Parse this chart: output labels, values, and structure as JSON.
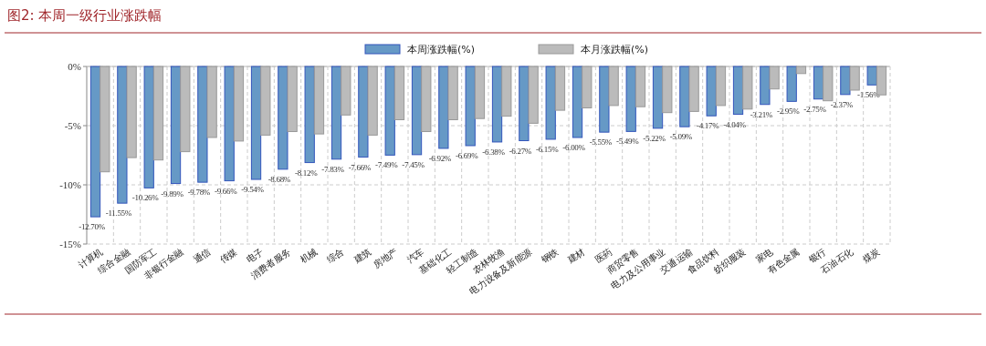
{
  "chart_data": {
    "type": "bar",
    "title": "图2:  本周一级行业涨跌幅",
    "categories": [
      "计算机",
      "综合金融",
      "国防军工",
      "非银行金融",
      "通信",
      "传媒",
      "电子",
      "消费者服务",
      "机械",
      "综合",
      "建筑",
      "房地产",
      "汽车",
      "基础化工",
      "轻工制造",
      "农林牧渔",
      "电力设备及新能源",
      "钢铁",
      "建材",
      "医药",
      "商贸零售",
      "电力及公用事业",
      "交通运输",
      "食品饮料",
      "纺织服装",
      "家电",
      "有色金属",
      "银行",
      "石油石化",
      "煤炭"
    ],
    "series": [
      {
        "name": "本周涨跌幅(%)",
        "color": "#6699c6",
        "values": [
          -12.7,
          -11.55,
          -10.26,
          -9.89,
          -9.78,
          -9.66,
          -9.54,
          -8.68,
          -8.12,
          -7.83,
          -7.66,
          -7.49,
          -7.45,
          -6.92,
          -6.69,
          -6.38,
          -6.27,
          -6.15,
          -6.0,
          -5.55,
          -5.49,
          -5.22,
          -5.09,
          -4.17,
          -4.04,
          -3.21,
          -2.95,
          -2.75,
          -2.37,
          -1.56
        ],
        "value_labels": [
          "-12.70%",
          "-11.55%",
          "-10.26%",
          "-9.89%",
          "-9.78%",
          "-9.66%",
          "-9.54%",
          "-8.68%",
          "-8.12%",
          "-7.83%",
          "-7.66%",
          "-7.49%",
          "-7.45%",
          "-6.92%",
          "-6.69%",
          "-6.38%",
          "-6.27%",
          "-6.15%",
          "-6.00%",
          "-5.55%",
          "-5.49%",
          "-5.22%",
          "-5.09%",
          "-4.17%",
          "-4.04%",
          "-3.21%",
          "-2.95%",
          "-2.75%",
          "-2.37%",
          "-1.56%"
        ]
      },
      {
        "name": "本月涨跌幅(%)",
        "color": "#bbbbbb",
        "values": [
          -8.9,
          -7.7,
          -7.9,
          -7.2,
          -6.0,
          -6.3,
          -5.8,
          -5.5,
          -5.7,
          -4.1,
          -5.8,
          -4.5,
          -5.5,
          -4.5,
          -4.4,
          -4.2,
          -4.8,
          -3.7,
          -3.5,
          -3.3,
          -3.4,
          -3.9,
          -3.8,
          -3.3,
          -3.6,
          -1.9,
          -0.6,
          -2.9,
          -2.0,
          -2.4
        ]
      }
    ],
    "ylim": [
      -15,
      0
    ],
    "yticks": [
      {
        "value": -15,
        "label": "-15%"
      },
      {
        "value": -10,
        "label": "-10%"
      },
      {
        "value": -5,
        "label": "-5%"
      },
      {
        "value": 0,
        "label": "0%"
      }
    ],
    "grid": true,
    "legend": "top"
  }
}
